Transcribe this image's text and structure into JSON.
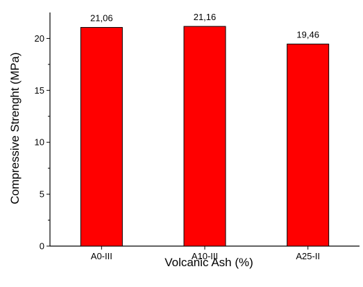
{
  "chart_data": {
    "type": "bar",
    "categories": [
      "A0-III",
      "A10-III",
      "A25-II"
    ],
    "values": [
      21.06,
      21.16,
      19.46
    ],
    "value_labels": [
      "21,06",
      "21,16",
      "19,46"
    ],
    "xlabel": "Volcanic Ash (%)",
    "ylabel": "Compressive Strenght (MPa)",
    "ylim": [
      0,
      22.5
    ],
    "yticks": [
      0,
      5,
      10,
      15,
      20
    ],
    "ytick_labels": [
      "0",
      "5",
      "10",
      "15",
      "20"
    ],
    "grid": false,
    "bar_color": "#ff0000",
    "bar_edge_color": "#000000"
  }
}
